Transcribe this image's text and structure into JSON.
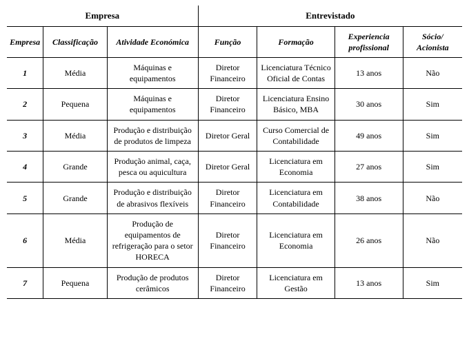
{
  "headers": {
    "group_company": "Empresa",
    "group_interviewee": "Entrevistado",
    "company_id": "Empresa",
    "classification": "Classificação",
    "economic_activity": "Atividade Económica",
    "role": "Função",
    "education": "Formação",
    "experience": "Experiencia profissional",
    "partner": "Sócio/ Acionista"
  },
  "rows": [
    {
      "id": "1",
      "classification": "Média",
      "activity": "Máquinas e equipamentos",
      "role": "Diretor Financeiro",
      "education": "Licenciatura Técnico Oficial de Contas",
      "experience": "13 anos",
      "partner": "Não"
    },
    {
      "id": "2",
      "classification": "Pequena",
      "activity": "Máquinas e equipamentos",
      "role": "Diretor Financeiro",
      "education": "Licenciatura Ensino Básico, MBA",
      "experience": "30 anos",
      "partner": "Sim"
    },
    {
      "id": "3",
      "classification": "Média",
      "activity": "Produção e distribuição de produtos de limpeza",
      "role": "Diretor Geral",
      "education": "Curso Comercial de Contabilidade",
      "experience": "49 anos",
      "partner": "Sim"
    },
    {
      "id": "4",
      "classification": "Grande",
      "activity": "Produção animal, caça, pesca ou aquicultura",
      "role": "Diretor Geral",
      "education": "Licenciatura em Economia",
      "experience": "27 anos",
      "partner": "Sim"
    },
    {
      "id": "5",
      "classification": "Grande",
      "activity": "Produção e distribuição de abrasivos flexíveis",
      "role": "Diretor Financeiro",
      "education": "Licenciatura em Contabilidade",
      "experience": "38 anos",
      "partner": "Não"
    },
    {
      "id": "6",
      "classification": "Média",
      "activity": "Produção de equipamentos de refrigeração para o setor HORECA",
      "role": "Diretor Financeiro",
      "education": "Licenciatura em Economia",
      "experience": "26 anos",
      "partner": "Não"
    },
    {
      "id": "7",
      "classification": "Pequena",
      "activity": "Produção de produtos cerâmicos",
      "role": "Diretor Financeiro",
      "education": "Licenciatura em Gestão",
      "experience": "13 anos",
      "partner": "Sim"
    }
  ],
  "style": {
    "type": "table",
    "columns": [
      "Empresa",
      "Classificação",
      "Atividade Económica",
      "Função",
      "Formação",
      "Experiencia profissional",
      "Sócio/ Acionista"
    ],
    "column_widths_pct": [
      8,
      14,
      20,
      13,
      17,
      15,
      13
    ],
    "background_color": "#ffffff",
    "border_color": "#000000",
    "text_color": "#000000",
    "header_fontsize_pt": 10,
    "body_fontsize_pt": 9,
    "font_family": "Times New Roman",
    "header_font_weight": "bold",
    "subheader_font_style": "italic",
    "row_id_font_style": "italic-bold",
    "text_align": "center",
    "vertical_align": "middle"
  }
}
